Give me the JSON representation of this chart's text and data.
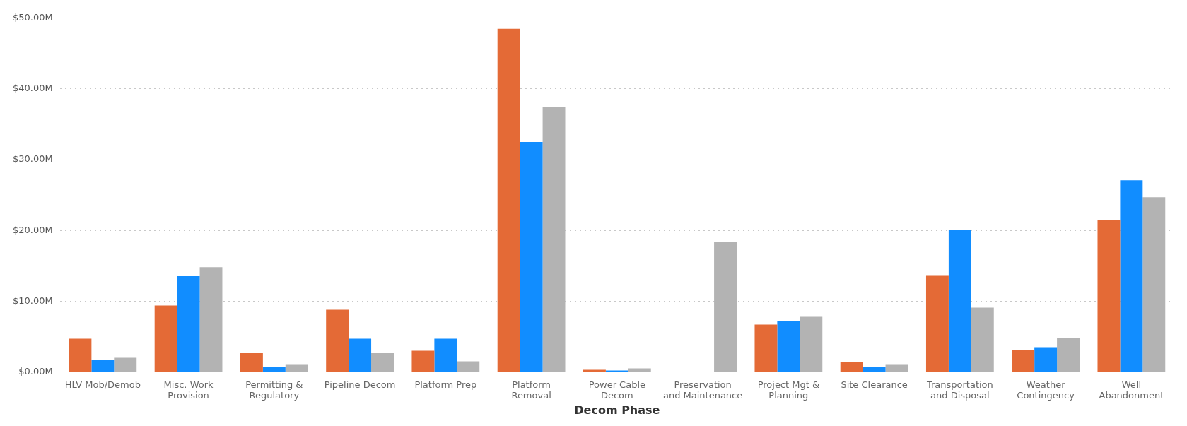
{
  "chart_data": {
    "type": "bar",
    "xlabel": "Decom Phase",
    "categories": [
      "HLV Mob/Demob",
      "Misc. Work Provision",
      "Permitting & Regulatory",
      "Pipeline Decom",
      "Platform Prep",
      "Platform Removal",
      "Power Cable Decom",
      "Preservation and Maintenance",
      "Project Mgt & Planning",
      "Site Clearance",
      "Transportation and Disposal",
      "Weather Contingency",
      "Well Abandonment"
    ],
    "series": [
      {
        "color": "#e46a36",
        "values": [
          4.7,
          9.4,
          2.7,
          8.8,
          3.0,
          48.5,
          0.3,
          null,
          6.7,
          1.4,
          13.7,
          3.1,
          21.5
        ]
      },
      {
        "color": "#118dff",
        "values": [
          1.7,
          13.6,
          0.7,
          4.7,
          4.7,
          32.5,
          0.2,
          null,
          7.2,
          0.7,
          20.1,
          3.5,
          27.1
        ]
      },
      {
        "color": "#b3b3b3",
        "values": [
          2.0,
          14.8,
          1.1,
          2.7,
          1.5,
          37.4,
          0.5,
          18.4,
          7.8,
          1.1,
          9.1,
          4.8,
          24.7
        ]
      }
    ],
    "ylim": [
      0,
      50
    ],
    "yticks": [
      {
        "value": 0,
        "label": "$0.00M"
      },
      {
        "value": 10,
        "label": "$10.00M"
      },
      {
        "value": 20,
        "label": "$20.00M"
      },
      {
        "value": 30,
        "label": "$30.00M"
      },
      {
        "value": 40,
        "label": "$40.00M"
      },
      {
        "value": 50,
        "label": "$50.00M"
      }
    ],
    "grid": "y",
    "legend": false
  }
}
